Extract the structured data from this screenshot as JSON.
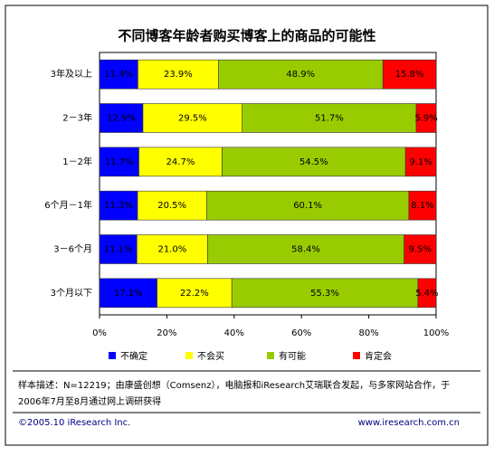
{
  "chart_data": {
    "type": "stacked-bar-horizontal",
    "title": "不同博客年龄者购买博客上的商品的可能性",
    "categories": [
      "3年及以上",
      "2－3年",
      "1－2年",
      "6个月－1年",
      "3－6个月",
      "3个月以下"
    ],
    "series": [
      {
        "name": "不确定",
        "color": "#0000ff",
        "values": [
          11.4,
          12.9,
          11.7,
          11.3,
          11.1,
          17.1
        ],
        "value_labels": [
          "11.4%",
          "12.9%",
          "11.7%",
          "11.3%",
          "11.1%",
          "17.1%"
        ]
      },
      {
        "name": "不会买",
        "color": "#ffff00",
        "values": [
          23.9,
          29.5,
          24.7,
          20.5,
          21,
          22.2
        ],
        "value_labels": [
          "23.9%",
          "29.5%",
          "24.7%",
          "20.5%",
          "21.0%",
          "22.2%"
        ]
      },
      {
        "name": "有可能",
        "color": "#99cc00",
        "values": [
          48.9,
          51.7,
          54.5,
          60.1,
          58.4,
          55.3
        ],
        "value_labels": [
          "48.9%",
          "51.7%",
          "54.5%",
          "60.1%",
          "58.4%",
          "55.3%"
        ]
      },
      {
        "name": "肯定会",
        "color": "#ff0000",
        "values": [
          15.8,
          5.9,
          9.1,
          8.1,
          9.5,
          5.4
        ],
        "value_labels": [
          "15.8%",
          "5.9%",
          "9.1%",
          "8.1%",
          "9.5%",
          "5.4%"
        ]
      }
    ],
    "xlim": [
      0,
      100
    ],
    "xticks": [
      {
        "value": 0,
        "label": "0%"
      },
      {
        "value": 20,
        "label": "20%"
      },
      {
        "value": 40,
        "label": "40%"
      },
      {
        "value": 60,
        "label": "60%"
      },
      {
        "value": 80,
        "label": "80%"
      },
      {
        "value": 100,
        "label": "100%"
      }
    ],
    "legend": "bottom"
  },
  "note": "样本描述：N=12219；由康盛创想（Comsenz），电脑报和iResearch艾瑞联合发起，与多家网站合作，于2006年7月至8月通过网上调研获得",
  "footer": {
    "copyright": "©2005.10 iResearch Inc.",
    "website": "www.iresearch.com.cn"
  }
}
